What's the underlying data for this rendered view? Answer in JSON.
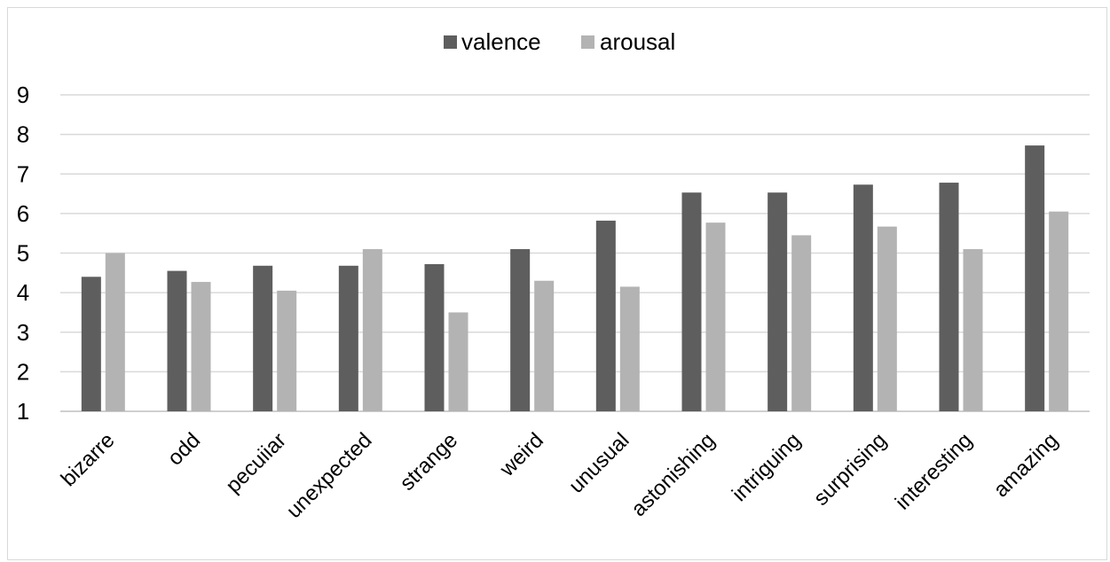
{
  "chart_data": {
    "type": "bar",
    "categories": [
      "bizarre",
      "odd",
      "pecuiiar",
      "unexpected",
      "strange",
      "weird",
      "unusual",
      "astonishing",
      "intriguing",
      "surprising",
      "interesting",
      "amazing"
    ],
    "series": [
      {
        "name": "valence",
        "color": "#5e5e5e",
        "values": [
          4.4,
          4.55,
          4.68,
          4.68,
          4.72,
          5.1,
          5.82,
          6.53,
          6.53,
          6.73,
          6.78,
          7.72
        ]
      },
      {
        "name": "arousal",
        "color": "#b3b3b3",
        "values": [
          5.0,
          4.27,
          4.05,
          5.1,
          3.5,
          4.3,
          4.15,
          5.77,
          5.45,
          5.67,
          5.1,
          6.05
        ]
      }
    ],
    "yticks": [
      "1",
      "2",
      "3",
      "4",
      "5",
      "6",
      "7",
      "8",
      "9"
    ],
    "ylim": [
      1,
      9
    ],
    "grid": true,
    "legend_position": "top-center"
  }
}
